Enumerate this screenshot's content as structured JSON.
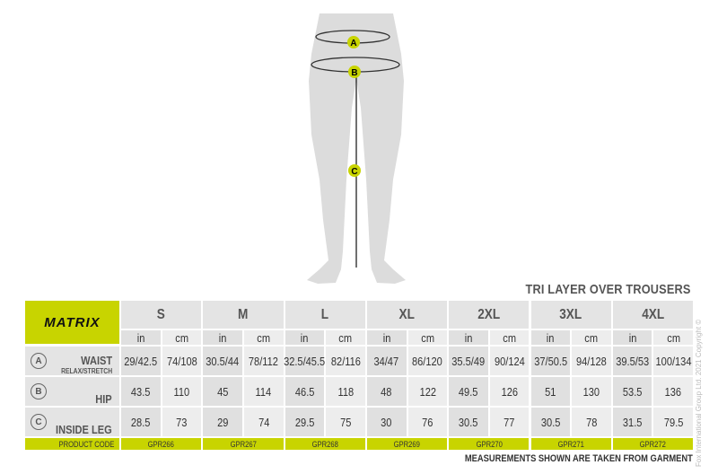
{
  "title": "TRI LAYER OVER TROUSERS",
  "note": "MEASUREMENTS SHOWN ARE TAKEN FROM GARMENT",
  "copyright": "Fox International Group Ltd. 2021 Copyright ©",
  "brand": "MATRIX",
  "accent": "#c8d400",
  "markers": [
    "A",
    "B",
    "C"
  ],
  "units": [
    "in",
    "cm"
  ],
  "sizes": [
    "S",
    "M",
    "L",
    "XL",
    "2XL",
    "3XL",
    "4XL"
  ],
  "rows": [
    {
      "marker": "A",
      "label": "WAIST",
      "sublabel": "RELAX/STRETCH",
      "values": [
        [
          "29/42.5",
          "74/108"
        ],
        [
          "30.5/44",
          "78/112"
        ],
        [
          "32.5/45.5",
          "82/116"
        ],
        [
          "34/47",
          "86/120"
        ],
        [
          "35.5/49",
          "90/124"
        ],
        [
          "37/50.5",
          "94/128"
        ],
        [
          "39.5/53",
          "100/134"
        ]
      ]
    },
    {
      "marker": "B",
      "label": "HIP",
      "values": [
        [
          "43.5",
          "110"
        ],
        [
          "45",
          "114"
        ],
        [
          "46.5",
          "118"
        ],
        [
          "48",
          "122"
        ],
        [
          "49.5",
          "126"
        ],
        [
          "51",
          "130"
        ],
        [
          "53.5",
          "136"
        ]
      ]
    },
    {
      "marker": "C",
      "label": "INSIDE LEG",
      "values": [
        [
          "28.5",
          "73"
        ],
        [
          "29",
          "74"
        ],
        [
          "29.5",
          "75"
        ],
        [
          "30",
          "76"
        ],
        [
          "30.5",
          "77"
        ],
        [
          "30.5",
          "78"
        ],
        [
          "31.5",
          "79.5"
        ]
      ]
    }
  ],
  "product_code_label": "PRODUCT CODE",
  "product_codes": [
    "GPR266",
    "GPR267",
    "GPR268",
    "GPR269",
    "GPR270",
    "GPR271",
    "GPR272"
  ]
}
